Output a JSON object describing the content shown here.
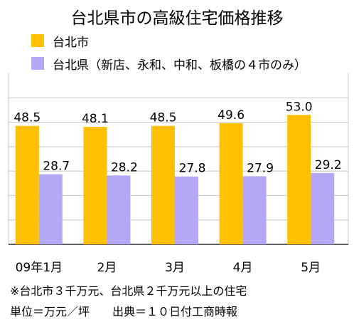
{
  "chart_data": {
    "type": "bar",
    "title": "台北県市の高級住宅価格推移",
    "categories": [
      "09年1月",
      "2月",
      "3月",
      "4月",
      "5月"
    ],
    "series": [
      {
        "name": "台北市",
        "values": [
          48.5,
          48.1,
          48.5,
          49.6,
          53.0
        ],
        "color": "#ffc000"
      },
      {
        "name": "台北県（新店、永和、中和、板橋の４市のみ）",
        "values": [
          28.7,
          28.2,
          27.8,
          27.9,
          29.2
        ],
        "color": "#b4a7f5"
      }
    ],
    "value_labels": [
      [
        "48.5",
        "48.1",
        "48.5",
        "49.6",
        "53.0"
      ],
      [
        "28.7",
        "28.2",
        "27.8",
        "27.9",
        "29.2"
      ]
    ],
    "ylim": [
      0,
      70
    ],
    "grid": true,
    "legend_position": "top-left"
  },
  "notes": [
    "※台北市３千万元、台北県２千万元以上の住宅",
    "単位＝万元／坪　　出典＝１０日付工商時報"
  ]
}
